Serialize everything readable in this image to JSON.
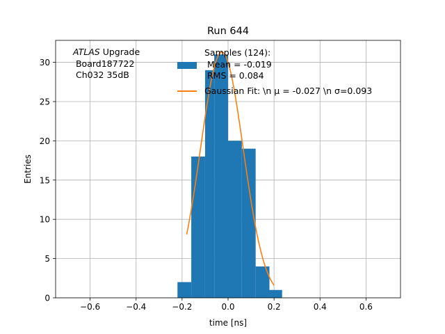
{
  "chart_data": {
    "type": "bar",
    "title": "Run 644",
    "xlabel": "time [ns]",
    "ylabel": "Entries",
    "xlim": [
      -0.75,
      0.75
    ],
    "ylim": [
      0,
      32.8
    ],
    "xticks": [
      -0.6,
      -0.4,
      -0.2,
      0.0,
      0.2,
      0.4,
      0.6
    ],
    "xtick_labels": [
      "−0.6",
      "−0.4",
      "−0.2",
      "0.0",
      "0.2",
      "0.4",
      "0.6"
    ],
    "yticks": [
      0,
      5,
      10,
      15,
      20,
      25,
      30
    ],
    "ytick_labels": [
      "0",
      "5",
      "10",
      "15",
      "20",
      "25",
      "30"
    ],
    "grid": true,
    "legend_position": "top-right",
    "annotation": {
      "line1_italic": "ATLAS",
      "line1_rest": " Upgrade",
      "line2": " Board187722",
      "line3": " Ch032 35dB"
    },
    "histogram": {
      "name_lines": [
        "Samples (124):",
        " Mean = -0.019",
        " RMS = 0.084"
      ],
      "color": "#1f77b4",
      "bins": [
        {
          "left": -0.22,
          "right": -0.16,
          "value": 2
        },
        {
          "left": -0.16,
          "right": -0.1,
          "value": 18
        },
        {
          "left": -0.1,
          "right": -0.06,
          "value": 29
        },
        {
          "left": -0.06,
          "right": 0.0,
          "value": 31
        },
        {
          "left": 0.0,
          "right": 0.06,
          "value": 20
        },
        {
          "left": 0.06,
          "right": 0.12,
          "value": 19
        },
        {
          "left": 0.12,
          "right": 0.18,
          "value": 4
        },
        {
          "left": 0.18,
          "right": 0.235,
          "value": 1
        }
      ]
    },
    "fit": {
      "name": "Gaussian Fit: \\n μ = -0.027 \\n σ=0.093",
      "color": "#ff7f0e",
      "amplitude": 31.3,
      "mu": -0.027,
      "sigma": 0.093,
      "x_range": [
        -0.18,
        0.2
      ]
    }
  }
}
